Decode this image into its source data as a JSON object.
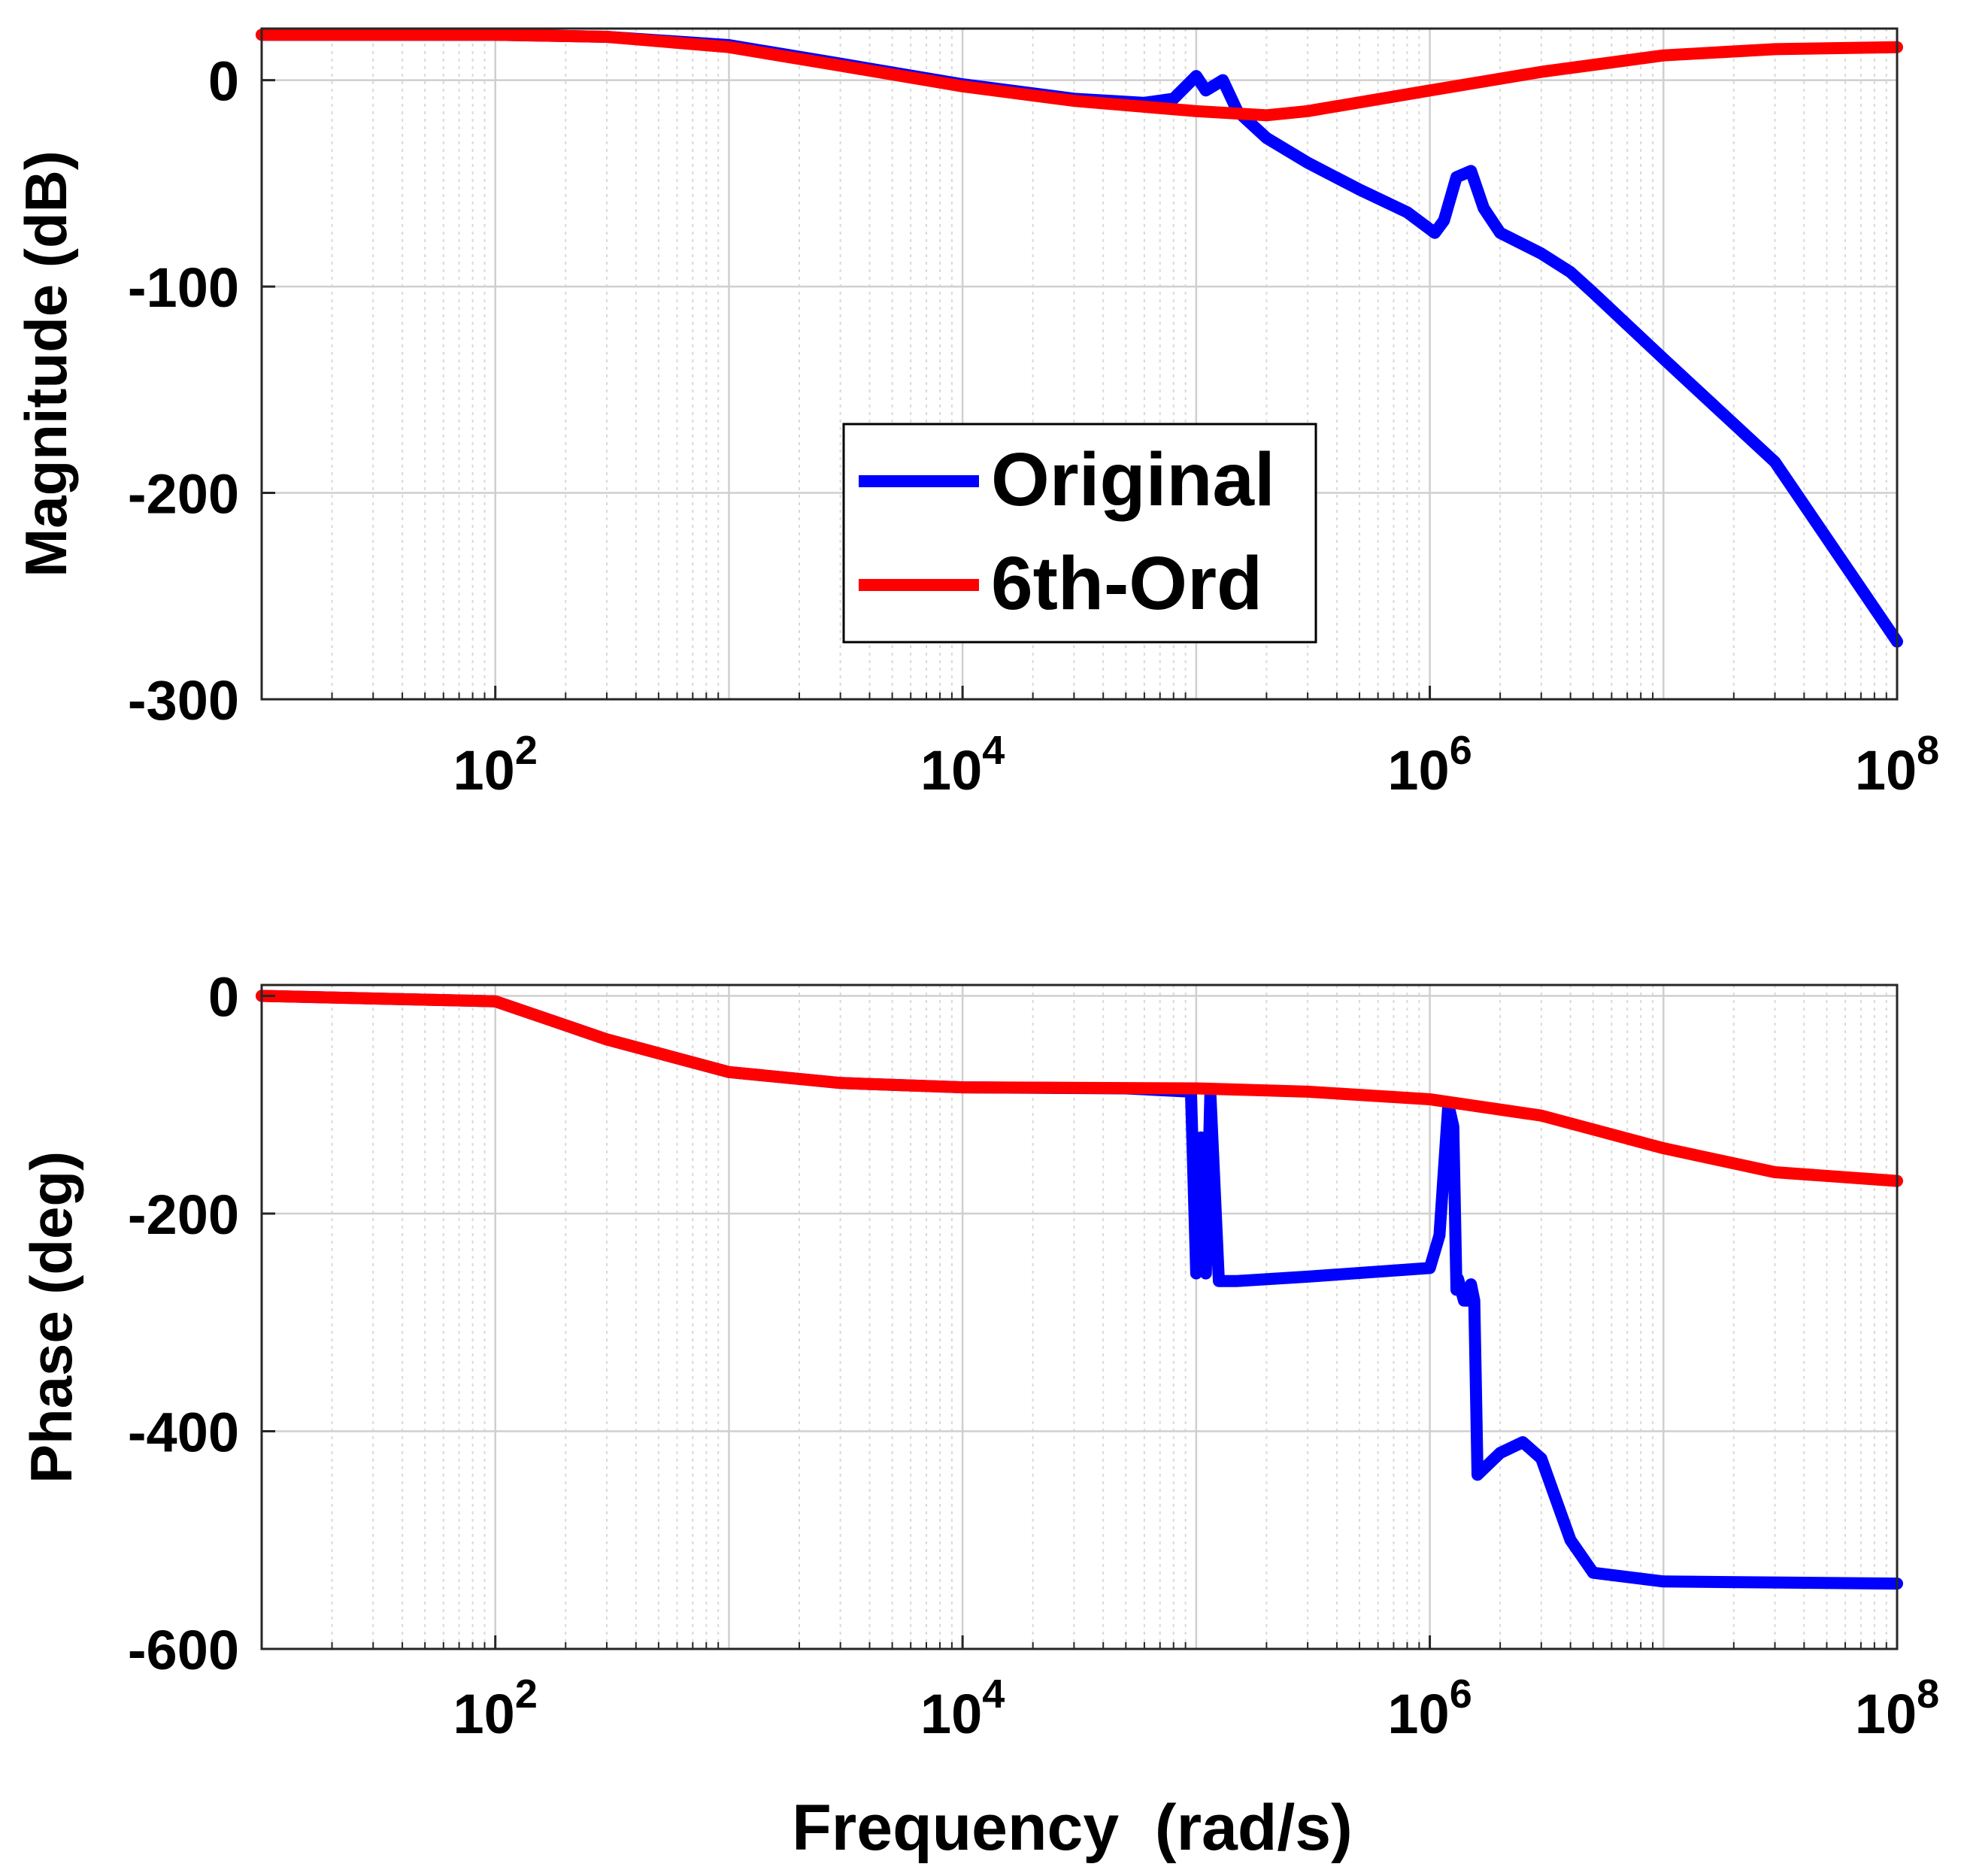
{
  "chart_data": [
    {
      "type": "line",
      "title": "",
      "xlabel": "",
      "ylabel": "Magnitude (dB)",
      "x_scale": "log",
      "xlim": [
        10,
        100000000
      ],
      "ylim": [
        -300,
        25
      ],
      "grid": true,
      "legend_position": "center",
      "x_ticks": [
        {
          "value": 100,
          "base": "10",
          "exp": "2"
        },
        {
          "value": 10000,
          "base": "10",
          "exp": "4"
        },
        {
          "value": 1000000,
          "base": "10",
          "exp": "6"
        },
        {
          "value": 100000000,
          "base": "10",
          "exp": "8"
        }
      ],
      "y_ticks": [
        {
          "value": 0,
          "label": "0"
        },
        {
          "value": -100,
          "label": "-100"
        },
        {
          "value": -200,
          "label": "-200"
        },
        {
          "value": -300,
          "label": "-300"
        }
      ],
      "series": [
        {
          "name": "Original",
          "color": "#0000ff",
          "points": [
            [
              10,
              22
            ],
            [
              30,
              22
            ],
            [
              100,
              22
            ],
            [
              300,
              21
            ],
            [
              1000,
              17
            ],
            [
              3000,
              8
            ],
            [
              10000,
              -2
            ],
            [
              30000,
              -9
            ],
            [
              60000,
              -11
            ],
            [
              80000,
              -9
            ],
            [
              100000,
              2
            ],
            [
              110000,
              -5
            ],
            [
              130000,
              0
            ],
            [
              150000,
              -15
            ],
            [
              200000,
              -28
            ],
            [
              300000,
              -40
            ],
            [
              500000,
              -53
            ],
            [
              800000,
              -64
            ],
            [
              1050000,
              -74
            ],
            [
              1150000,
              -68
            ],
            [
              1300000,
              -47
            ],
            [
              1500000,
              -44
            ],
            [
              1700000,
              -62
            ],
            [
              2000000,
              -74
            ],
            [
              3000000,
              -84
            ],
            [
              4000000,
              -93
            ],
            [
              5000000,
              -103
            ],
            [
              10000000,
              -135
            ],
            [
              30000000,
              -185
            ],
            [
              100000000,
              -272
            ]
          ]
        },
        {
          "name": "6th-Ord",
          "color": "#ff0000",
          "points": [
            [
              10,
              22
            ],
            [
              100,
              22
            ],
            [
              300,
              21
            ],
            [
              1000,
              16
            ],
            [
              3000,
              7
            ],
            [
              10000,
              -3
            ],
            [
              30000,
              -10
            ],
            [
              100000,
              -15
            ],
            [
              200000,
              -17
            ],
            [
              300000,
              -15
            ],
            [
              1000000,
              -5
            ],
            [
              3000000,
              4
            ],
            [
              10000000,
              12
            ],
            [
              30000000,
              15
            ],
            [
              100000000,
              16
            ]
          ]
        }
      ]
    },
    {
      "type": "line",
      "title": "",
      "xlabel": "Frequency  (rad/s)",
      "ylabel": "Phase (deg)",
      "x_scale": "log",
      "xlim": [
        10,
        100000000
      ],
      "ylim": [
        -600,
        10
      ],
      "grid": true,
      "x_ticks": [
        {
          "value": 100,
          "base": "10",
          "exp": "2"
        },
        {
          "value": 10000,
          "base": "10",
          "exp": "4"
        },
        {
          "value": 1000000,
          "base": "10",
          "exp": "6"
        },
        {
          "value": 100000000,
          "base": "10",
          "exp": "8"
        }
      ],
      "y_ticks": [
        {
          "value": 0,
          "label": "0"
        },
        {
          "value": -200,
          "label": "-200"
        },
        {
          "value": -400,
          "label": "-400"
        },
        {
          "value": -600,
          "label": "-600"
        }
      ],
      "series": [
        {
          "name": "Original",
          "color": "#0000ff",
          "points": [
            [
              10,
              0
            ],
            [
              100,
              -5
            ],
            [
              300,
              -40
            ],
            [
              1000,
              -70
            ],
            [
              3000,
              -80
            ],
            [
              10000,
              -84
            ],
            [
              50000,
              -85
            ],
            [
              95000,
              -88
            ],
            [
              100000,
              -255
            ],
            [
              105000,
              -130
            ],
            [
              110000,
              -255
            ],
            [
              115000,
              -90
            ],
            [
              125000,
              -262
            ],
            [
              150000,
              -262
            ],
            [
              300000,
              -258
            ],
            [
              1000000,
              -250
            ],
            [
              1100000,
              -220
            ],
            [
              1200000,
              -100
            ],
            [
              1260000,
              -120
            ],
            [
              1300000,
              -270
            ],
            [
              1320000,
              -260
            ],
            [
              1400000,
              -280
            ],
            [
              1450000,
              -280
            ],
            [
              1500000,
              -265
            ],
            [
              1550000,
              -280
            ],
            [
              1600000,
              -440
            ],
            [
              2000000,
              -420
            ],
            [
              2500000,
              -410
            ],
            [
              3000000,
              -425
            ],
            [
              4000000,
              -500
            ],
            [
              5000000,
              -530
            ],
            [
              10000000,
              -538
            ],
            [
              100000000,
              -540
            ]
          ]
        },
        {
          "name": "6th-Ord",
          "color": "#ff0000",
          "points": [
            [
              10,
              0
            ],
            [
              100,
              -5
            ],
            [
              300,
              -40
            ],
            [
              1000,
              -70
            ],
            [
              3000,
              -80
            ],
            [
              10000,
              -84
            ],
            [
              100000,
              -85
            ],
            [
              300000,
              -88
            ],
            [
              1000000,
              -95
            ],
            [
              3000000,
              -110
            ],
            [
              10000000,
              -140
            ],
            [
              30000000,
              -162
            ],
            [
              100000000,
              -170
            ]
          ]
        }
      ]
    }
  ]
}
